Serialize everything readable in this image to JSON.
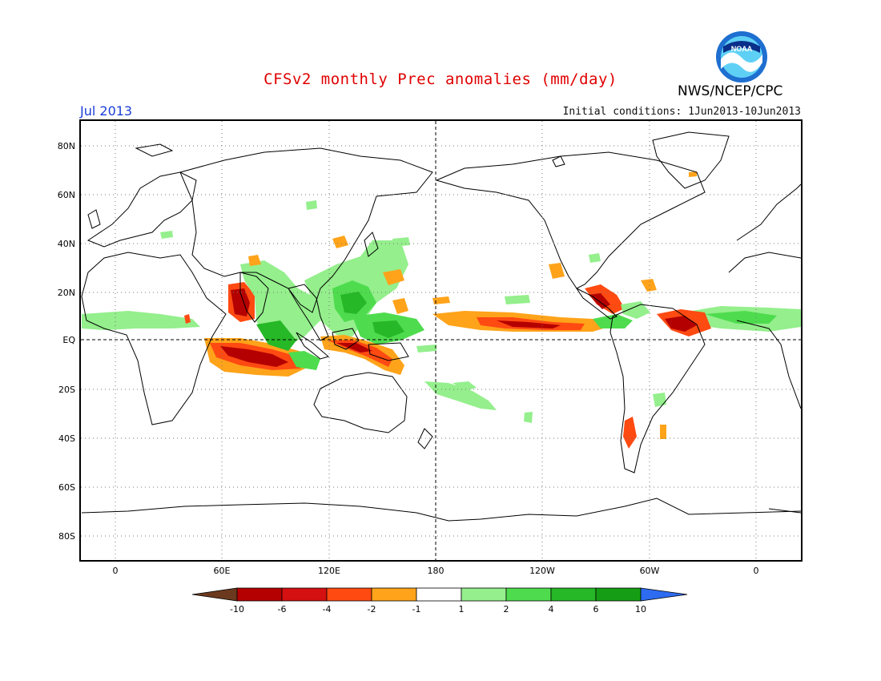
{
  "header": {
    "title": "CFSv2 monthly Prec anomalies (mm/day)",
    "agency": "NWS/NCEP/CPC",
    "logo_text": "NOAA",
    "month": "Jul 2013",
    "initial_conditions": "Initial conditions: 1Jun2013-10Jun2013"
  },
  "map": {
    "lat_labels": [
      "80N",
      "60N",
      "40N",
      "20N",
      "EQ",
      "20S",
      "40S",
      "60S",
      "80S"
    ],
    "lon_labels": [
      "0",
      "60E",
      "120E",
      "180",
      "120W",
      "60W",
      "0"
    ],
    "grid": "dotted",
    "equator_line": "dashed",
    "dateline": "dashed"
  },
  "colorbar": {
    "labels": [
      "-10",
      "-6",
      "-4",
      "-2",
      "-1",
      "1",
      "2",
      "4",
      "6",
      "10"
    ],
    "colors": [
      "#6b3a1e",
      "#b40000",
      "#d41010",
      "#ff4a12",
      "#ffa31a",
      "#ffffff",
      "#94ef8c",
      "#4edc4e",
      "#26b826",
      "#159e15",
      "#2d6bf0"
    ]
  },
  "colors": {
    "neg_strong": "#b40000",
    "neg_mid": "#ff4a12",
    "neg_weak": "#ffa31a",
    "pos_weak": "#94ef8c",
    "pos_mid": "#4edc4e",
    "pos_strong": "#26b826"
  }
}
